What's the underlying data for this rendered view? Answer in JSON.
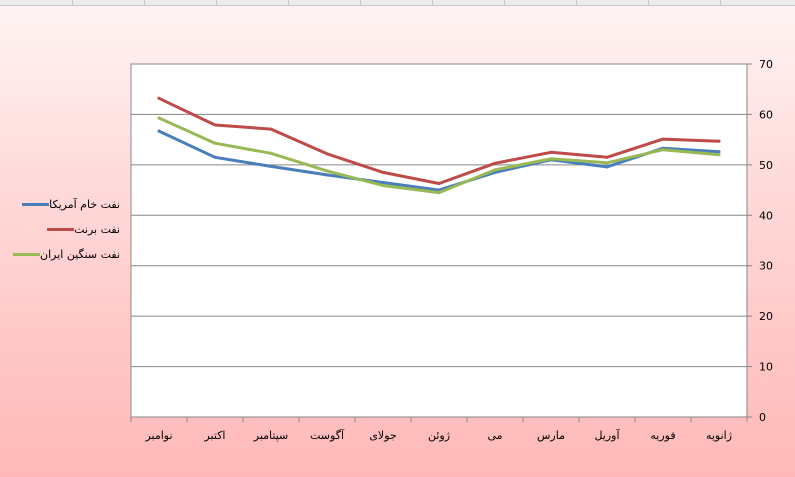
{
  "chart_data": {
    "type": "line",
    "categories": [
      "نوامبر",
      "اکتبر",
      "سپتامبر",
      "آگوست",
      "جولای",
      "ژوئن",
      "می",
      "مارس",
      "آوریل",
      "فوریه",
      "ژانویه"
    ],
    "ylim": [
      0,
      70
    ],
    "yticks": [
      0,
      10,
      20,
      30,
      40,
      50,
      60,
      70
    ],
    "y_axis_side": "right",
    "grid": true,
    "legend_position": "left",
    "series": [
      {
        "name": "نفت خام آمریکا",
        "color": "#4a7ebb",
        "values": [
          56.7,
          51.5,
          49.7,
          48.0,
          46.5,
          45.0,
          48.5,
          51.0,
          49.6,
          53.3,
          52.6
        ]
      },
      {
        "name": "نفت برنت",
        "color": "#be4b48",
        "values": [
          63.2,
          57.9,
          57.1,
          52.2,
          48.5,
          46.3,
          50.3,
          52.5,
          51.5,
          55.1,
          54.7
        ]
      },
      {
        "name": "نفت سنگین ایران",
        "color": "#98b954",
        "values": [
          59.3,
          54.3,
          52.3,
          48.8,
          45.9,
          44.5,
          49.0,
          51.2,
          50.4,
          53.0,
          52.0
        ]
      }
    ]
  }
}
